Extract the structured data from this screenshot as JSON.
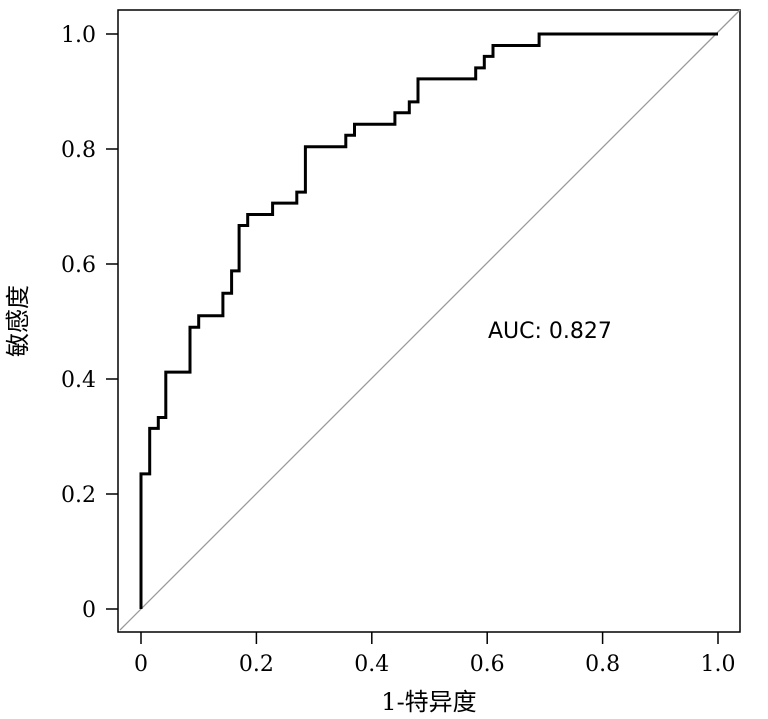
{
  "chart_data": {
    "type": "line",
    "xlabel": "1-特异度",
    "ylabel": "敏感度",
    "xlim": [
      0,
      1
    ],
    "ylim": [
      0,
      1
    ],
    "x_ticks": [
      "0",
      "0.2",
      "0.4",
      "0.6",
      "0.8",
      "1.0"
    ],
    "y_ticks": [
      "0",
      "0.2",
      "0.4",
      "0.6",
      "0.8",
      "1.0"
    ],
    "grid": false,
    "annotation": "AUC: 0.827",
    "colors": {
      "roc": "#000000",
      "reference": "#999999"
    },
    "series": [
      {
        "values": [
          [
            0.0,
            0.0
          ],
          [
            0.0,
            0.235
          ],
          [
            0.015,
            0.235
          ],
          [
            0.015,
            0.314
          ],
          [
            0.03,
            0.314
          ],
          [
            0.03,
            0.333
          ],
          [
            0.043,
            0.333
          ],
          [
            0.043,
            0.412
          ],
          [
            0.085,
            0.412
          ],
          [
            0.085,
            0.49
          ],
          [
            0.1,
            0.49
          ],
          [
            0.1,
            0.51
          ],
          [
            0.142,
            0.51
          ],
          [
            0.142,
            0.549
          ],
          [
            0.157,
            0.549
          ],
          [
            0.157,
            0.588
          ],
          [
            0.17,
            0.588
          ],
          [
            0.17,
            0.667
          ],
          [
            0.185,
            0.667
          ],
          [
            0.185,
            0.686
          ],
          [
            0.228,
            0.686
          ],
          [
            0.228,
            0.706
          ],
          [
            0.27,
            0.706
          ],
          [
            0.27,
            0.725
          ],
          [
            0.285,
            0.725
          ],
          [
            0.285,
            0.804
          ],
          [
            0.355,
            0.804
          ],
          [
            0.355,
            0.824
          ],
          [
            0.37,
            0.824
          ],
          [
            0.37,
            0.843
          ],
          [
            0.44,
            0.843
          ],
          [
            0.44,
            0.863
          ],
          [
            0.465,
            0.863
          ],
          [
            0.465,
            0.882
          ],
          [
            0.48,
            0.882
          ],
          [
            0.48,
            0.922
          ],
          [
            0.58,
            0.922
          ],
          [
            0.58,
            0.941
          ],
          [
            0.595,
            0.941
          ],
          [
            0.595,
            0.961
          ],
          [
            0.61,
            0.961
          ],
          [
            0.61,
            0.98
          ],
          [
            0.69,
            0.98
          ],
          [
            0.69,
            1.0
          ],
          [
            1.0,
            1.0
          ]
        ]
      }
    ],
    "reference_line": [
      [
        0.0,
        0.0
      ],
      [
        1.0,
        1.0
      ]
    ]
  }
}
